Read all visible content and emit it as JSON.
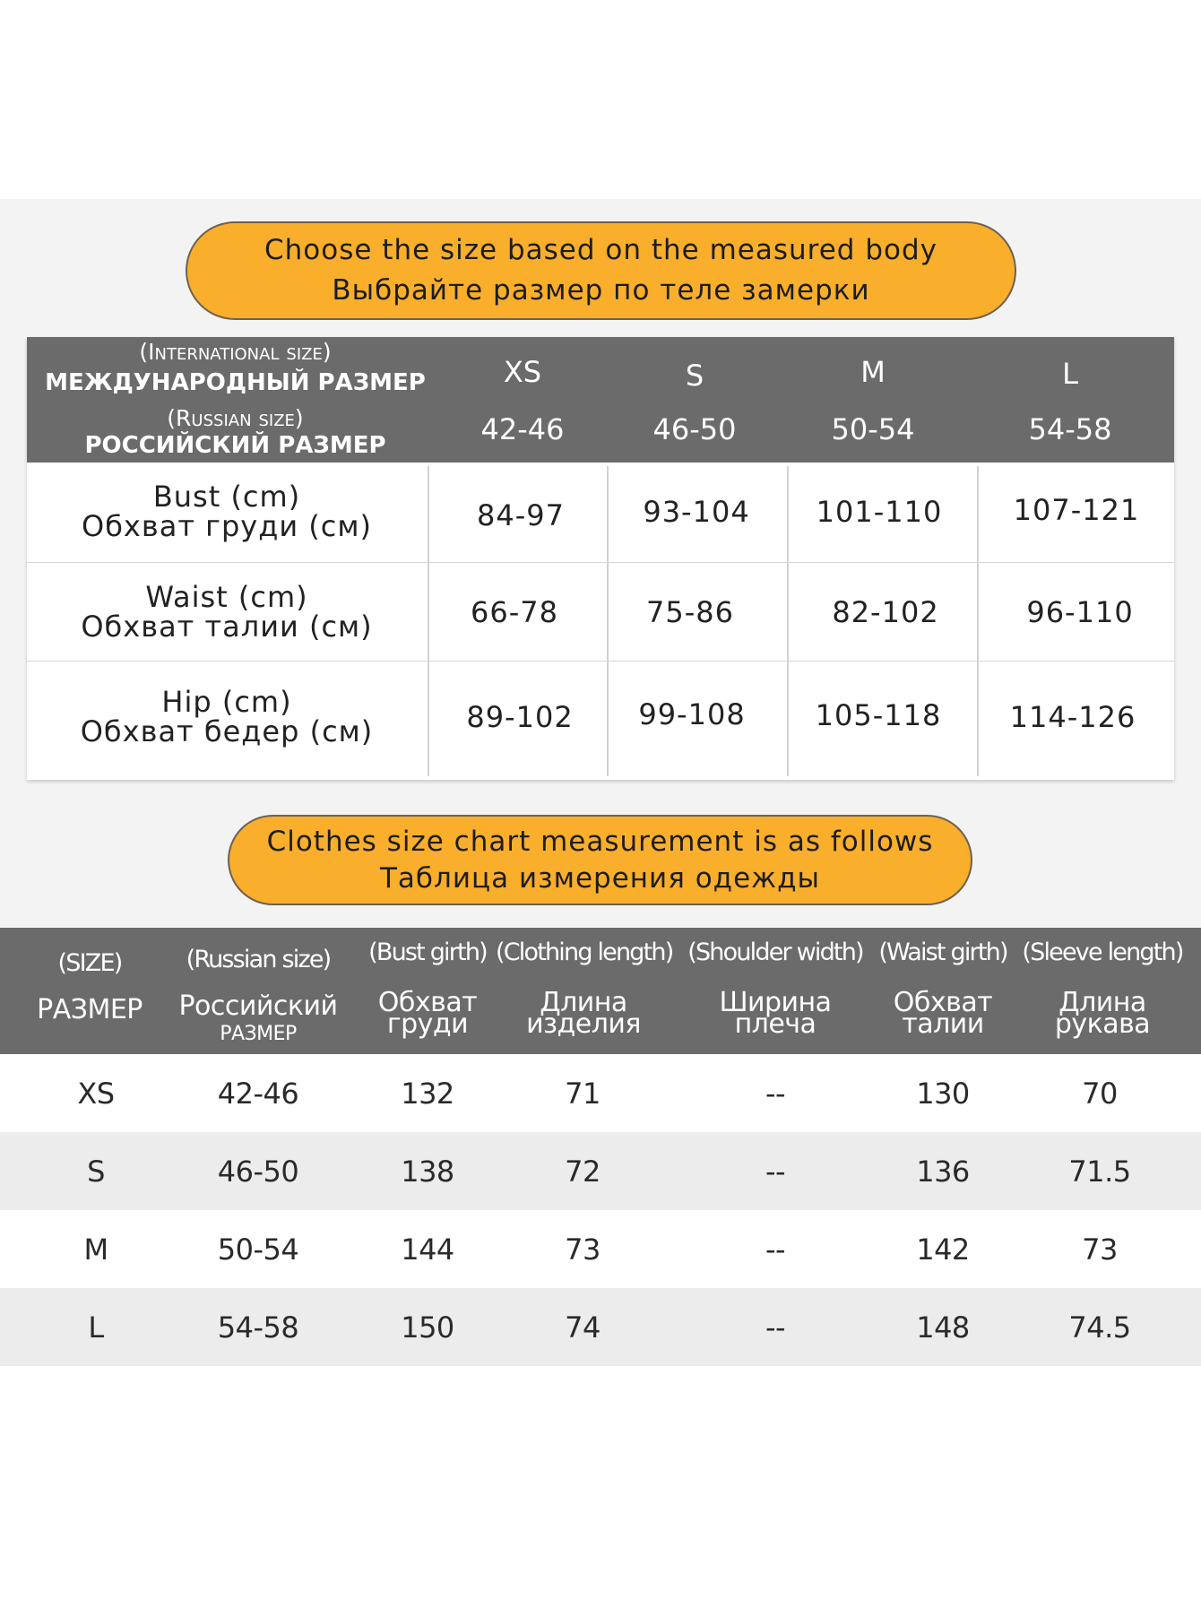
{
  "banner1": {
    "line1": "Choose the size based on the measured body",
    "line2": "Выбрайте размер по теле замерки"
  },
  "table1": {
    "header": {
      "intl_en": "(International size)",
      "intl_ru": "МЕЖДУНАРОДНЫЙ РАЗМЕР",
      "rus_en": "(Russian size)",
      "rus_ru": "РОССИЙСКИЙ РАЗМЕР"
    },
    "sizes": [
      "XS",
      "S",
      "M",
      "L"
    ],
    "russian_sizes": [
      "42-46",
      "46-50",
      "50-54",
      "54-58"
    ],
    "rows": [
      {
        "label_en": "Bust (cm)",
        "label_ru": "Обхват груди (см)",
        "values": [
          "84-97",
          "93-104",
          "101-110",
          "107-121"
        ]
      },
      {
        "label_en": "Waist (cm)",
        "label_ru": "Обхват талии (см)",
        "values": [
          "66-78",
          "75-86",
          "82-102",
          "96-110"
        ]
      },
      {
        "label_en": "Hip (cm)",
        "label_ru": "Обхват бедер (см)",
        "values": [
          "89-102",
          "99-108",
          "105-118",
          "114-126"
        ]
      }
    ]
  },
  "banner2": {
    "line1": "Clothes size chart measurement is as follows",
    "line2": "Таблица измерения одежды"
  },
  "table2": {
    "columns": [
      {
        "en": "(SIZE)",
        "ru": "РАЗМЕР"
      },
      {
        "en": "(Russian size)",
        "ru": "Российский",
        "ru2": "РАЗМЕР"
      },
      {
        "en": "(Bust girth)",
        "ru": "Обхват",
        "ru2": "груди"
      },
      {
        "en": "(Clothing length)",
        "ru": "Длина",
        "ru2": "изделия"
      },
      {
        "en": "(Shoulder width)",
        "ru": "Ширина",
        "ru2": "плеча"
      },
      {
        "en": "(Waist girth)",
        "ru": "Обхват",
        "ru2": "талии"
      },
      {
        "en": "(Sleeve length)",
        "ru": "Длина",
        "ru2": "рукава"
      }
    ],
    "rows": [
      [
        "XS",
        "42-46",
        "132",
        "71",
        "--",
        "130",
        "70"
      ],
      [
        "S",
        "46-50",
        "138",
        "72",
        "--",
        "136",
        "71.5"
      ],
      [
        "M",
        "50-54",
        "144",
        "73",
        "--",
        "142",
        "73"
      ],
      [
        "L",
        "54-58",
        "150",
        "74",
        "--",
        "148",
        "74.5"
      ]
    ]
  },
  "colors": {
    "accent": "#f9ae2c",
    "header_gray": "#6b6b6b",
    "panel_bg": "#f3f3f3",
    "row_alt": "#ececec"
  }
}
